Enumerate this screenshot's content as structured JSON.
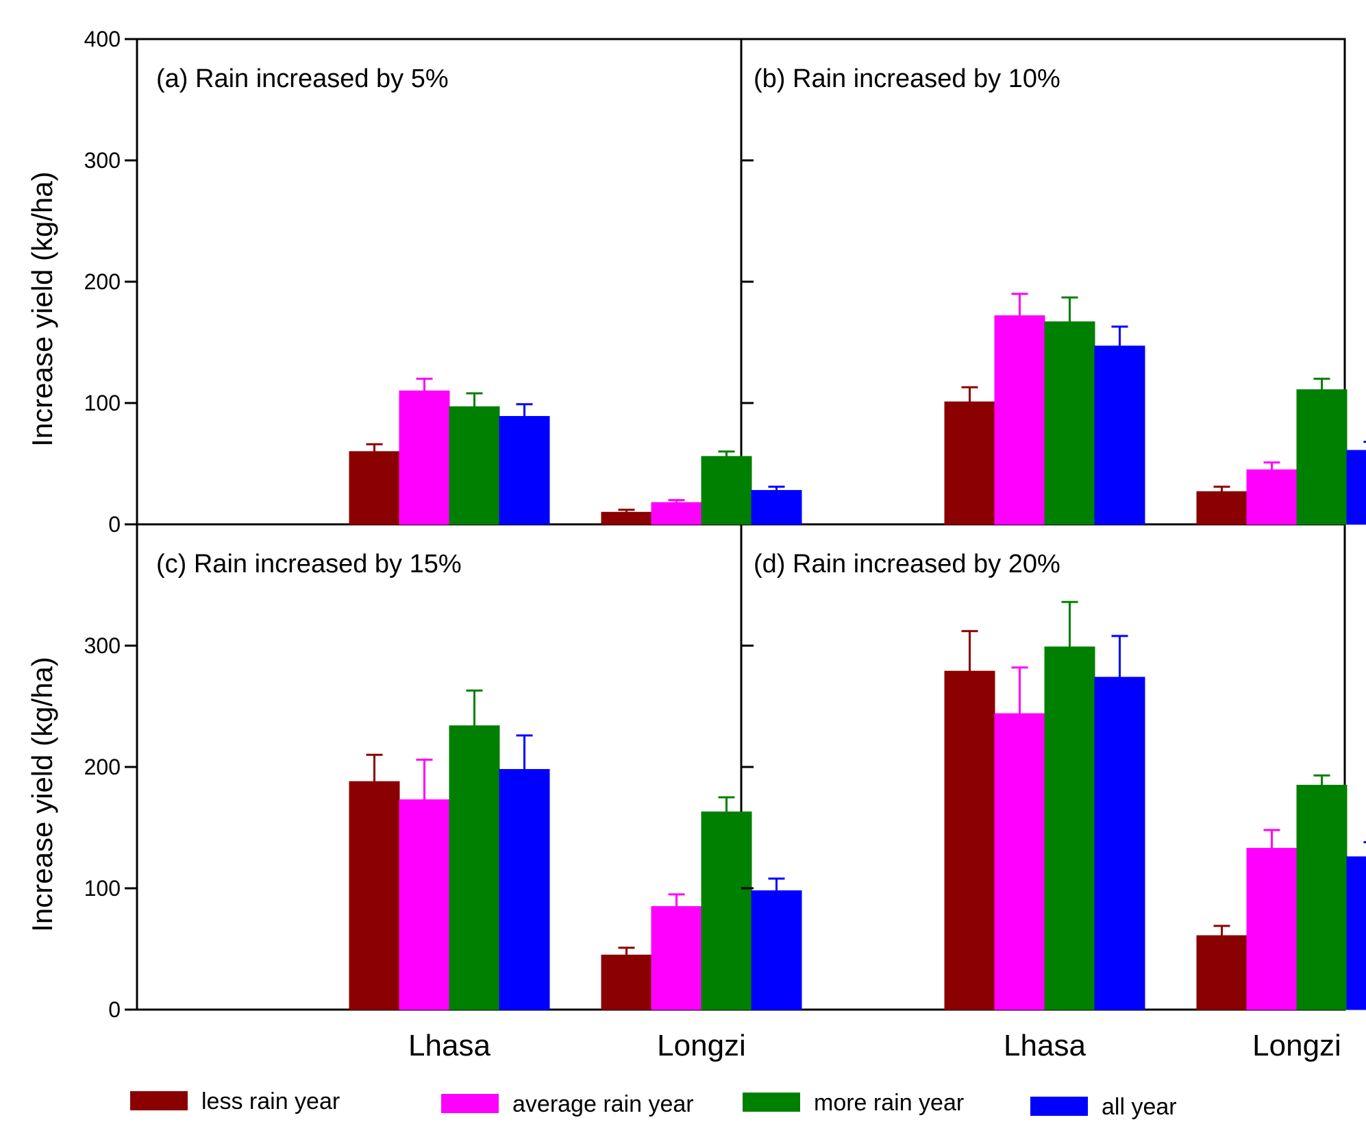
{
  "chart_data": {
    "type": "bar",
    "ylabel": "Increase yield (kg/ha)",
    "ylim": [
      0,
      400
    ],
    "yticks": [
      0,
      100,
      200,
      300,
      400
    ],
    "categories": [
      "Lhasa",
      "Longzi"
    ],
    "colors": {
      "less rain year": "#8b0000",
      "average rain year": "#ff00ff",
      "more rain year": "#008000",
      "all year": "#0000ff"
    },
    "legend": [
      {
        "name": "less rain year",
        "color": "#8b0000"
      },
      {
        "name": "average rain year",
        "color": "#ff00ff"
      },
      {
        "name": "more rain year",
        "color": "#008000"
      },
      {
        "name": "all year",
        "color": "#0000ff"
      }
    ],
    "panels": [
      {
        "id": "a",
        "title": "(a) Rain increased by 5%",
        "series": [
          {
            "name": "less rain year",
            "values": [
              60,
              10
            ],
            "errors": [
              6,
              2
            ]
          },
          {
            "name": "average rain year",
            "values": [
              110,
              18
            ],
            "errors": [
              10,
              2
            ]
          },
          {
            "name": "more rain year",
            "values": [
              97,
              56
            ],
            "errors": [
              11,
              4
            ]
          },
          {
            "name": "all year",
            "values": [
              89,
              28
            ],
            "errors": [
              10,
              3
            ]
          }
        ]
      },
      {
        "id": "b",
        "title": "(b) Rain increased by 10%",
        "series": [
          {
            "name": "less rain year",
            "values": [
              101,
              27
            ],
            "errors": [
              12,
              4
            ]
          },
          {
            "name": "average rain year",
            "values": [
              172,
              45
            ],
            "errors": [
              18,
              6
            ]
          },
          {
            "name": "more rain year",
            "values": [
              167,
              111
            ],
            "errors": [
              20,
              9
            ]
          },
          {
            "name": "all year",
            "values": [
              147,
              61
            ],
            "errors": [
              16,
              7
            ]
          }
        ]
      },
      {
        "id": "c",
        "title": "(c) Rain increased by 15%",
        "series": [
          {
            "name": "less rain year",
            "values": [
              188,
              45
            ],
            "errors": [
              22,
              6
            ]
          },
          {
            "name": "average rain year",
            "values": [
              173,
              85
            ],
            "errors": [
              33,
              10
            ]
          },
          {
            "name": "more rain year",
            "values": [
              234,
              163
            ],
            "errors": [
              29,
              12
            ]
          },
          {
            "name": "all year",
            "values": [
              198,
              98
            ],
            "errors": [
              28,
              10
            ]
          }
        ]
      },
      {
        "id": "d",
        "title": "(d) Rain increased by 20%",
        "series": [
          {
            "name": "less rain year",
            "values": [
              279,
              61
            ],
            "errors": [
              33,
              8
            ]
          },
          {
            "name": "average rain year",
            "values": [
              244,
              133
            ],
            "errors": [
              38,
              15
            ]
          },
          {
            "name": "more rain year",
            "values": [
              299,
              185
            ],
            "errors": [
              37,
              8
            ]
          },
          {
            "name": "all year",
            "values": [
              274,
              126
            ],
            "errors": [
              34,
              12
            ]
          }
        ]
      }
    ]
  }
}
